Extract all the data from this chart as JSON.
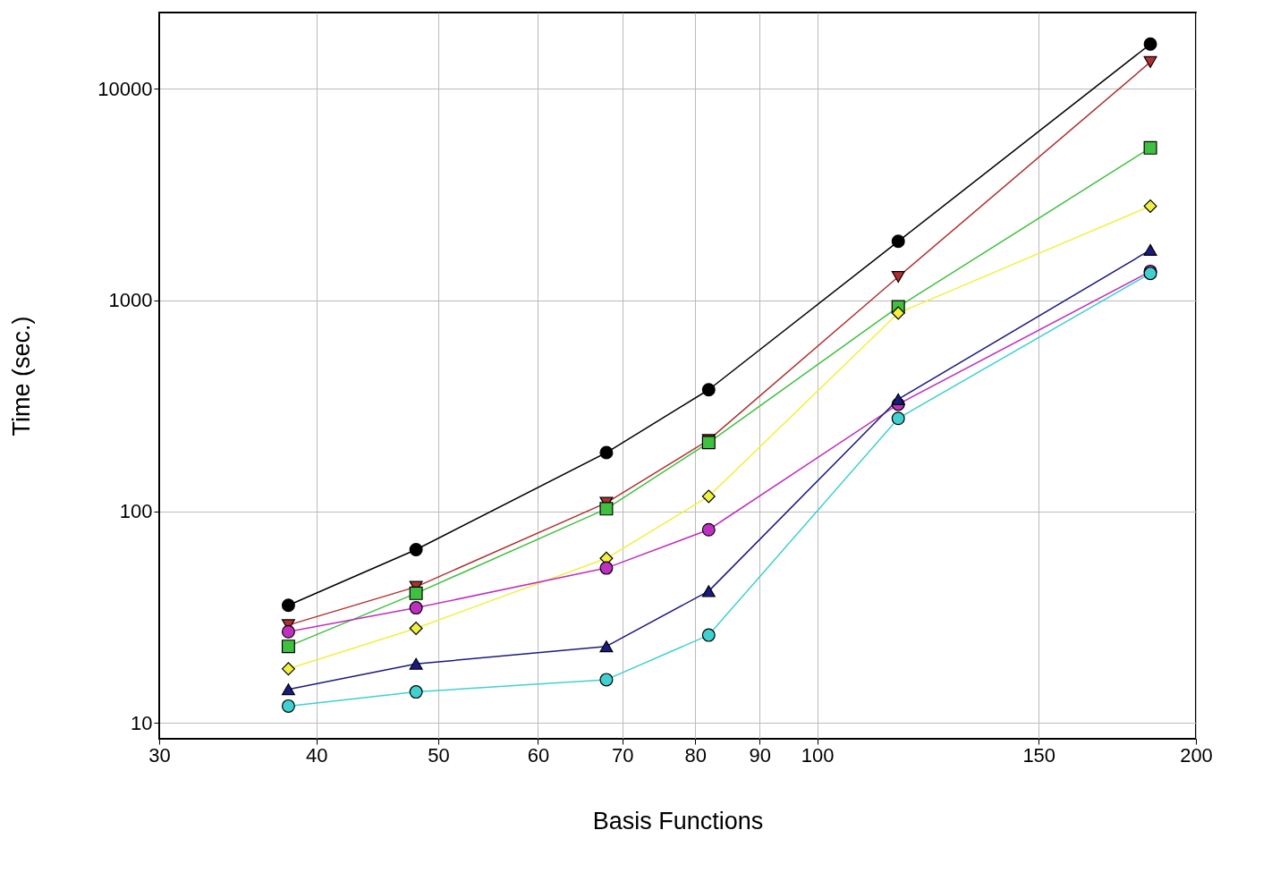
{
  "chart_data": {
    "type": "line",
    "xlabel": "Basis Functions",
    "ylabel": "Time (sec.)",
    "x": [
      38,
      48,
      68,
      82,
      116,
      184
    ],
    "series": [
      {
        "color": "#000000",
        "marker": "circle",
        "values": [
          36,
          66,
          190,
          377,
          1900,
          16300
        ]
      },
      {
        "color": "#b03030",
        "marker": "triangle-down",
        "values": [
          29,
          44,
          110,
          218,
          1290,
          13400
        ]
      },
      {
        "color": "#40c040",
        "marker": "square",
        "values": [
          23,
          41,
          103,
          212,
          930,
          5260
        ]
      },
      {
        "color": "#f0f040",
        "marker": "diamond",
        "values": [
          18,
          28,
          60,
          118,
          870,
          2790
        ]
      },
      {
        "color": "#c030c0",
        "marker": "circle",
        "values": [
          27,
          35,
          54,
          82,
          322,
          1370
        ]
      },
      {
        "color": "#1a1a80",
        "marker": "triangle-up",
        "values": [
          14.4,
          19,
          23,
          42,
          340,
          1730
        ]
      },
      {
        "color": "#40d0d0",
        "marker": "circle",
        "values": [
          12,
          14,
          16,
          26,
          276,
          1340
        ]
      }
    ],
    "xlim": [
      30,
      200
    ],
    "xticks": [
      30,
      40,
      50,
      60,
      70,
      80,
      90,
      100,
      150,
      200
    ],
    "ylim": [
      8.4,
      23000
    ],
    "yticks": [
      10,
      100,
      1000,
      10000
    ],
    "log": "xy",
    "grid": true,
    "legend": false
  }
}
